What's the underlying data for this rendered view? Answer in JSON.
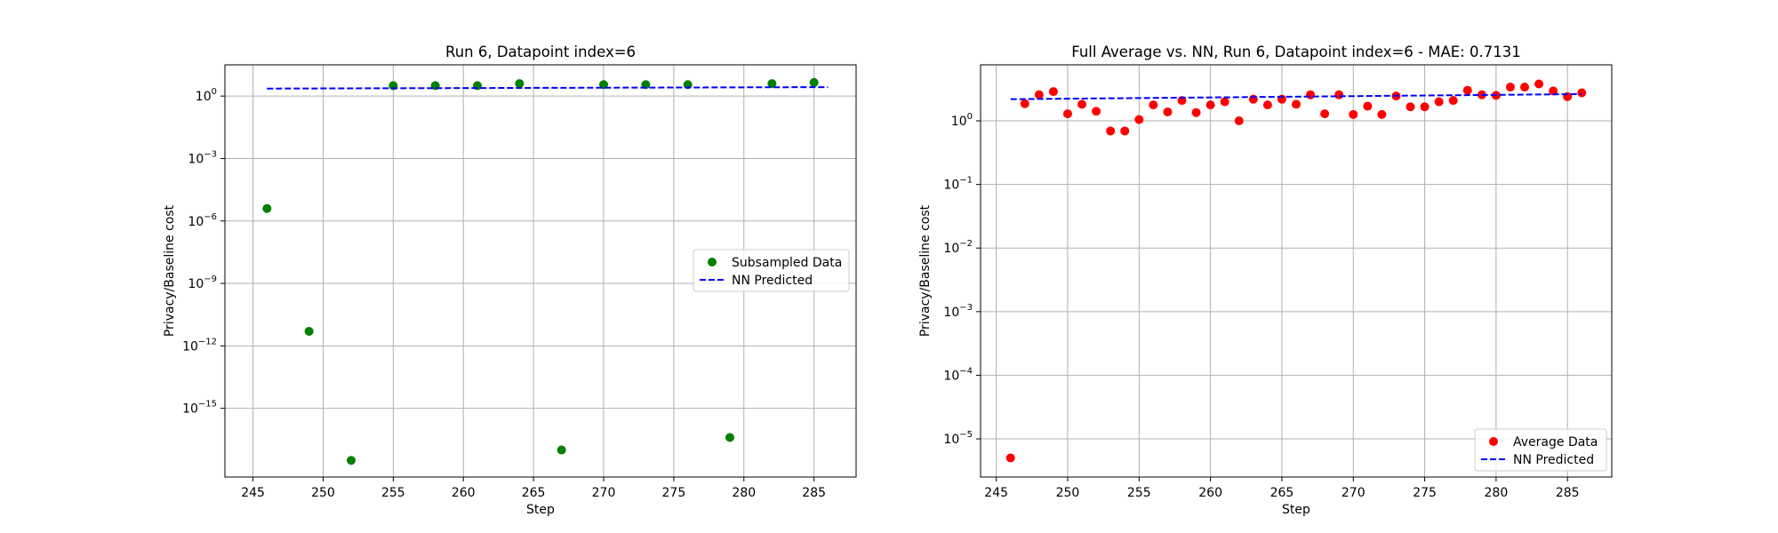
{
  "chart_data": [
    {
      "type": "scatter",
      "title": "Run 6, Datapoint index=6",
      "xlabel": "Step",
      "ylabel": "Privacy/Baseline cost",
      "yscale": "log",
      "xlim": [
        243.0,
        288.0
      ],
      "ylim_log10": [
        -18.3,
        1.5
      ],
      "grid": true,
      "legend_position": "center-right",
      "xticks": [
        {
          "value": 245,
          "label": "245"
        },
        {
          "value": 250,
          "label": "250"
        },
        {
          "value": 255,
          "label": "255"
        },
        {
          "value": 260,
          "label": "260"
        },
        {
          "value": 265,
          "label": "265"
        },
        {
          "value": 270,
          "label": "270"
        },
        {
          "value": 275,
          "label": "275"
        },
        {
          "value": 280,
          "label": "280"
        },
        {
          "value": 285,
          "label": "285"
        }
      ],
      "yticks": [
        {
          "exp": 0,
          "base": "10",
          "sup": "0"
        },
        {
          "exp": -3,
          "base": "10",
          "sup": "−3"
        },
        {
          "exp": -6,
          "base": "10",
          "sup": "−6"
        },
        {
          "exp": -9,
          "base": "10",
          "sup": "−9"
        },
        {
          "exp": -12,
          "base": "10",
          "sup": "−12"
        },
        {
          "exp": -15,
          "base": "10",
          "sup": "−15"
        }
      ],
      "series": [
        {
          "name": "Subsampled Data",
          "kind": "scatter",
          "color": "#008000",
          "points": [
            {
              "x": 246,
              "log10y": -5.4
            },
            {
              "x": 249,
              "log10y": -11.3
            },
            {
              "x": 252,
              "log10y": -17.5
            },
            {
              "x": 255,
              "log10y": 0.5
            },
            {
              "x": 258,
              "log10y": 0.5
            },
            {
              "x": 261,
              "log10y": 0.5
            },
            {
              "x": 264,
              "log10y": 0.6
            },
            {
              "x": 267,
              "log10y": -17.0
            },
            {
              "x": 270,
              "log10y": 0.55
            },
            {
              "x": 273,
              "log10y": 0.55
            },
            {
              "x": 276,
              "log10y": 0.55
            },
            {
              "x": 279,
              "log10y": -16.4
            },
            {
              "x": 282,
              "log10y": 0.6
            },
            {
              "x": 285,
              "log10y": 0.65
            }
          ]
        },
        {
          "name": "NN Predicted",
          "kind": "line",
          "dash": "dashed",
          "color": "#0000ff",
          "points": [
            {
              "x": 246,
              "log10y": 0.36
            },
            {
              "x": 286,
              "log10y": 0.43
            }
          ]
        }
      ]
    },
    {
      "type": "scatter",
      "title": "Full Average vs. NN, Run 6, Datapoint index=6 - MAE: 0.7131",
      "xlabel": "Step",
      "ylabel": "Privacy/Baseline cost",
      "yscale": "log",
      "xlim": [
        243.9,
        288.1
      ],
      "ylim_log10": [
        -5.6,
        0.88
      ],
      "grid": true,
      "legend_position": "lower-right",
      "xticks": [
        {
          "value": 245,
          "label": "245"
        },
        {
          "value": 250,
          "label": "250"
        },
        {
          "value": 255,
          "label": "255"
        },
        {
          "value": 260,
          "label": "260"
        },
        {
          "value": 265,
          "label": "265"
        },
        {
          "value": 270,
          "label": "270"
        },
        {
          "value": 275,
          "label": "275"
        },
        {
          "value": 280,
          "label": "280"
        },
        {
          "value": 285,
          "label": "285"
        }
      ],
      "yticks": [
        {
          "exp": 0,
          "base": "10",
          "sup": "0"
        },
        {
          "exp": -1,
          "base": "10",
          "sup": "−1"
        },
        {
          "exp": -2,
          "base": "10",
          "sup": "−2"
        },
        {
          "exp": -3,
          "base": "10",
          "sup": "−3"
        },
        {
          "exp": -4,
          "base": "10",
          "sup": "−4"
        },
        {
          "exp": -5,
          "base": "10",
          "sup": "−5"
        }
      ],
      "series": [
        {
          "name": "Average Data",
          "kind": "scatter",
          "color": "#ff0000",
          "points": [
            {
              "x": 246,
              "log10y": -5.3
            },
            {
              "x": 247,
              "log10y": 0.27
            },
            {
              "x": 248,
              "log10y": 0.41
            },
            {
              "x": 249,
              "log10y": 0.46
            },
            {
              "x": 250,
              "log10y": 0.11
            },
            {
              "x": 251,
              "log10y": 0.26
            },
            {
              "x": 252,
              "log10y": 0.15
            },
            {
              "x": 253,
              "log10y": -0.16
            },
            {
              "x": 254,
              "log10y": -0.16
            },
            {
              "x": 255,
              "log10y": 0.02
            },
            {
              "x": 256,
              "log10y": 0.25
            },
            {
              "x": 257,
              "log10y": 0.14
            },
            {
              "x": 258,
              "log10y": 0.32
            },
            {
              "x": 259,
              "log10y": 0.13
            },
            {
              "x": 260,
              "log10y": 0.25
            },
            {
              "x": 261,
              "log10y": 0.3
            },
            {
              "x": 262,
              "log10y": 0.0
            },
            {
              "x": 263,
              "log10y": 0.34
            },
            {
              "x": 264,
              "log10y": 0.25
            },
            {
              "x": 265,
              "log10y": 0.34
            },
            {
              "x": 266,
              "log10y": 0.26
            },
            {
              "x": 267,
              "log10y": 0.41
            },
            {
              "x": 268,
              "log10y": 0.11
            },
            {
              "x": 269,
              "log10y": 0.41
            },
            {
              "x": 270,
              "log10y": 0.1
            },
            {
              "x": 271,
              "log10y": 0.23
            },
            {
              "x": 272,
              "log10y": 0.1
            },
            {
              "x": 273,
              "log10y": 0.39
            },
            {
              "x": 274,
              "log10y": 0.22
            },
            {
              "x": 275,
              "log10y": 0.22
            },
            {
              "x": 276,
              "log10y": 0.3
            },
            {
              "x": 277,
              "log10y": 0.32
            },
            {
              "x": 278,
              "log10y": 0.48
            },
            {
              "x": 279,
              "log10y": 0.41
            },
            {
              "x": 280,
              "log10y": 0.4
            },
            {
              "x": 281,
              "log10y": 0.53
            },
            {
              "x": 282,
              "log10y": 0.53
            },
            {
              "x": 283,
              "log10y": 0.58
            },
            {
              "x": 284,
              "log10y": 0.47
            },
            {
              "x": 285,
              "log10y": 0.38
            },
            {
              "x": 286,
              "log10y": 0.44
            }
          ]
        },
        {
          "name": "NN Predicted",
          "kind": "line",
          "dash": "dashed",
          "color": "#0000ff",
          "points": [
            {
              "x": 246,
              "log10y": 0.34
            },
            {
              "x": 286,
              "log10y": 0.42
            }
          ]
        }
      ]
    }
  ]
}
